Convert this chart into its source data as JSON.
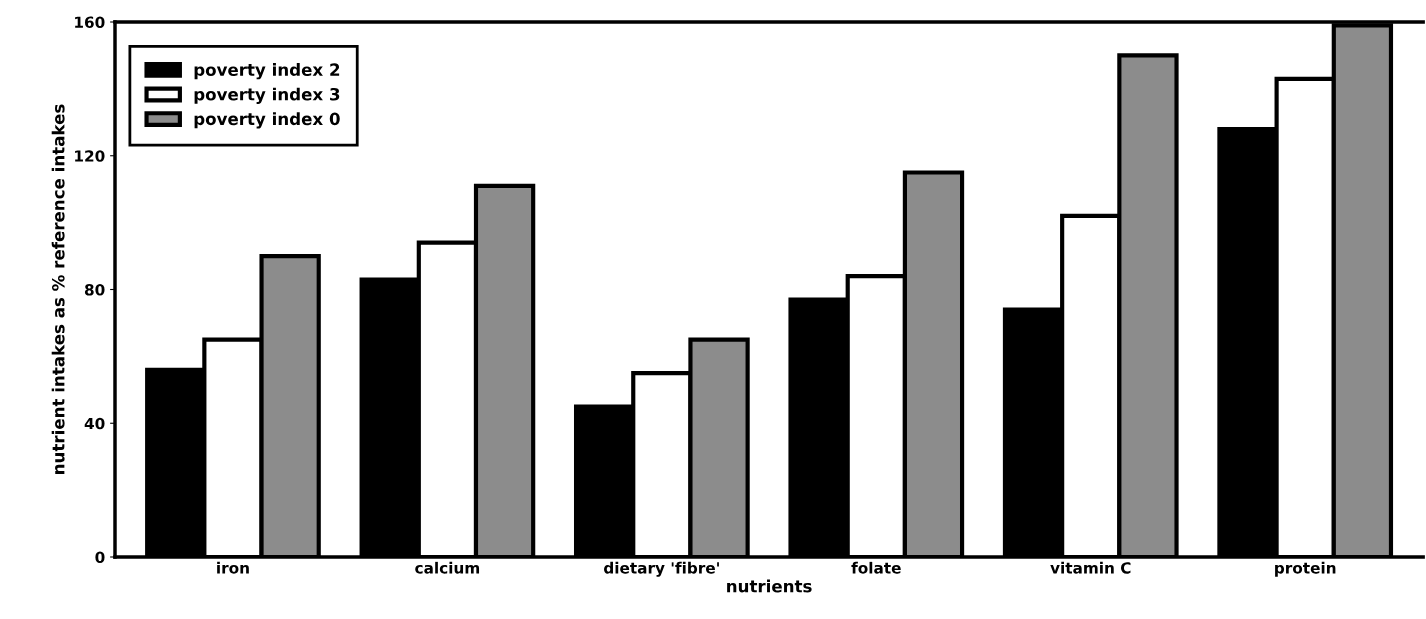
{
  "chart_data": {
    "type": "bar",
    "xlabel": "nutrients",
    "ylabel": "nutrient intakes as % reference intakes",
    "categories": [
      "iron",
      "calcium",
      "dietary 'fibre'",
      "folate",
      "vitamin C",
      "protein"
    ],
    "series": [
      {
        "name": "poverty index 2",
        "color": "#000000",
        "values": [
          56,
          83,
          45,
          77,
          74,
          128
        ]
      },
      {
        "name": "poverty index 3",
        "color": "#ffffff",
        "values": [
          65,
          94,
          55,
          84,
          102,
          143
        ]
      },
      {
        "name": "poverty index 0",
        "color": "#8c8c8c",
        "values": [
          90,
          111,
          65,
          115,
          150,
          159
        ]
      }
    ],
    "ylim": [
      0,
      160
    ],
    "yticks": [
      0,
      40,
      80,
      120,
      160
    ],
    "grid": false,
    "legend": "top left"
  }
}
